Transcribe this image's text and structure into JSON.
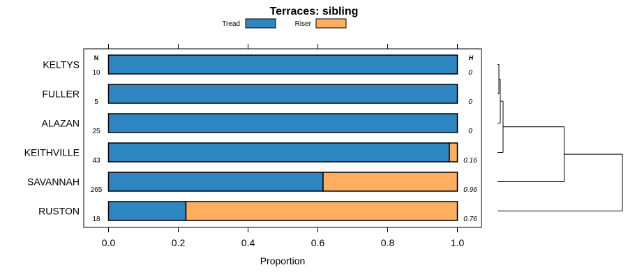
{
  "chart_data": {
    "type": "bar",
    "orientation": "horizontal",
    "stacked": true,
    "title": "Terraces: sibling",
    "xlabel": "Proportion",
    "ylabel": "",
    "xlim": [
      0,
      1
    ],
    "x_ticks": [
      "0.0",
      "0.2",
      "0.4",
      "0.6",
      "0.8",
      "1.0"
    ],
    "categories": [
      "KELTYS",
      "FULLER",
      "ALAZAN",
      "KEITHVILLE",
      "SAVANNAH",
      "RUSTON"
    ],
    "series": [
      {
        "name": "Tread",
        "color": "#2e86c1",
        "values": [
          1.0,
          1.0,
          1.0,
          0.977,
          0.615,
          0.222
        ]
      },
      {
        "name": "Riser",
        "color": "#fdae61",
        "values": [
          0.0,
          0.0,
          0.0,
          0.023,
          0.385,
          0.778
        ]
      }
    ],
    "n_header": "N",
    "n_values": [
      "10",
      "5",
      "25",
      "43",
      "265",
      "18"
    ],
    "h_header": "H",
    "h_values": [
      "0",
      "0",
      "0",
      "0.16",
      "0.96",
      "0.76"
    ],
    "legend_position": "top-center",
    "grid": false,
    "dendrogram": {
      "leaves": [
        "KELTYS",
        "FULLER",
        "ALAZAN",
        "KEITHVILLE",
        "SAVANNAH",
        "RUSTON"
      ],
      "merges": [
        {
          "a": "KELTYS",
          "b": "FULLER",
          "height": 0.01
        },
        {
          "a": "KELTYS+FULLER",
          "b": "ALAZAN",
          "height": 0.02
        },
        {
          "a": "KELTYS+FULLER+ALAZAN",
          "b": "KEITHVILLE",
          "height": 0.04
        },
        {
          "a": "KELTYS+FULLER+ALAZAN+KEITHVILLE",
          "b": "SAVANNAH",
          "height": 0.48
        },
        {
          "a": "KELTYS+FULLER+ALAZAN+KEITHVILLE+SAVANNAH",
          "b": "RUSTON",
          "height": 0.9
        }
      ],
      "max_height": 0.9
    }
  }
}
